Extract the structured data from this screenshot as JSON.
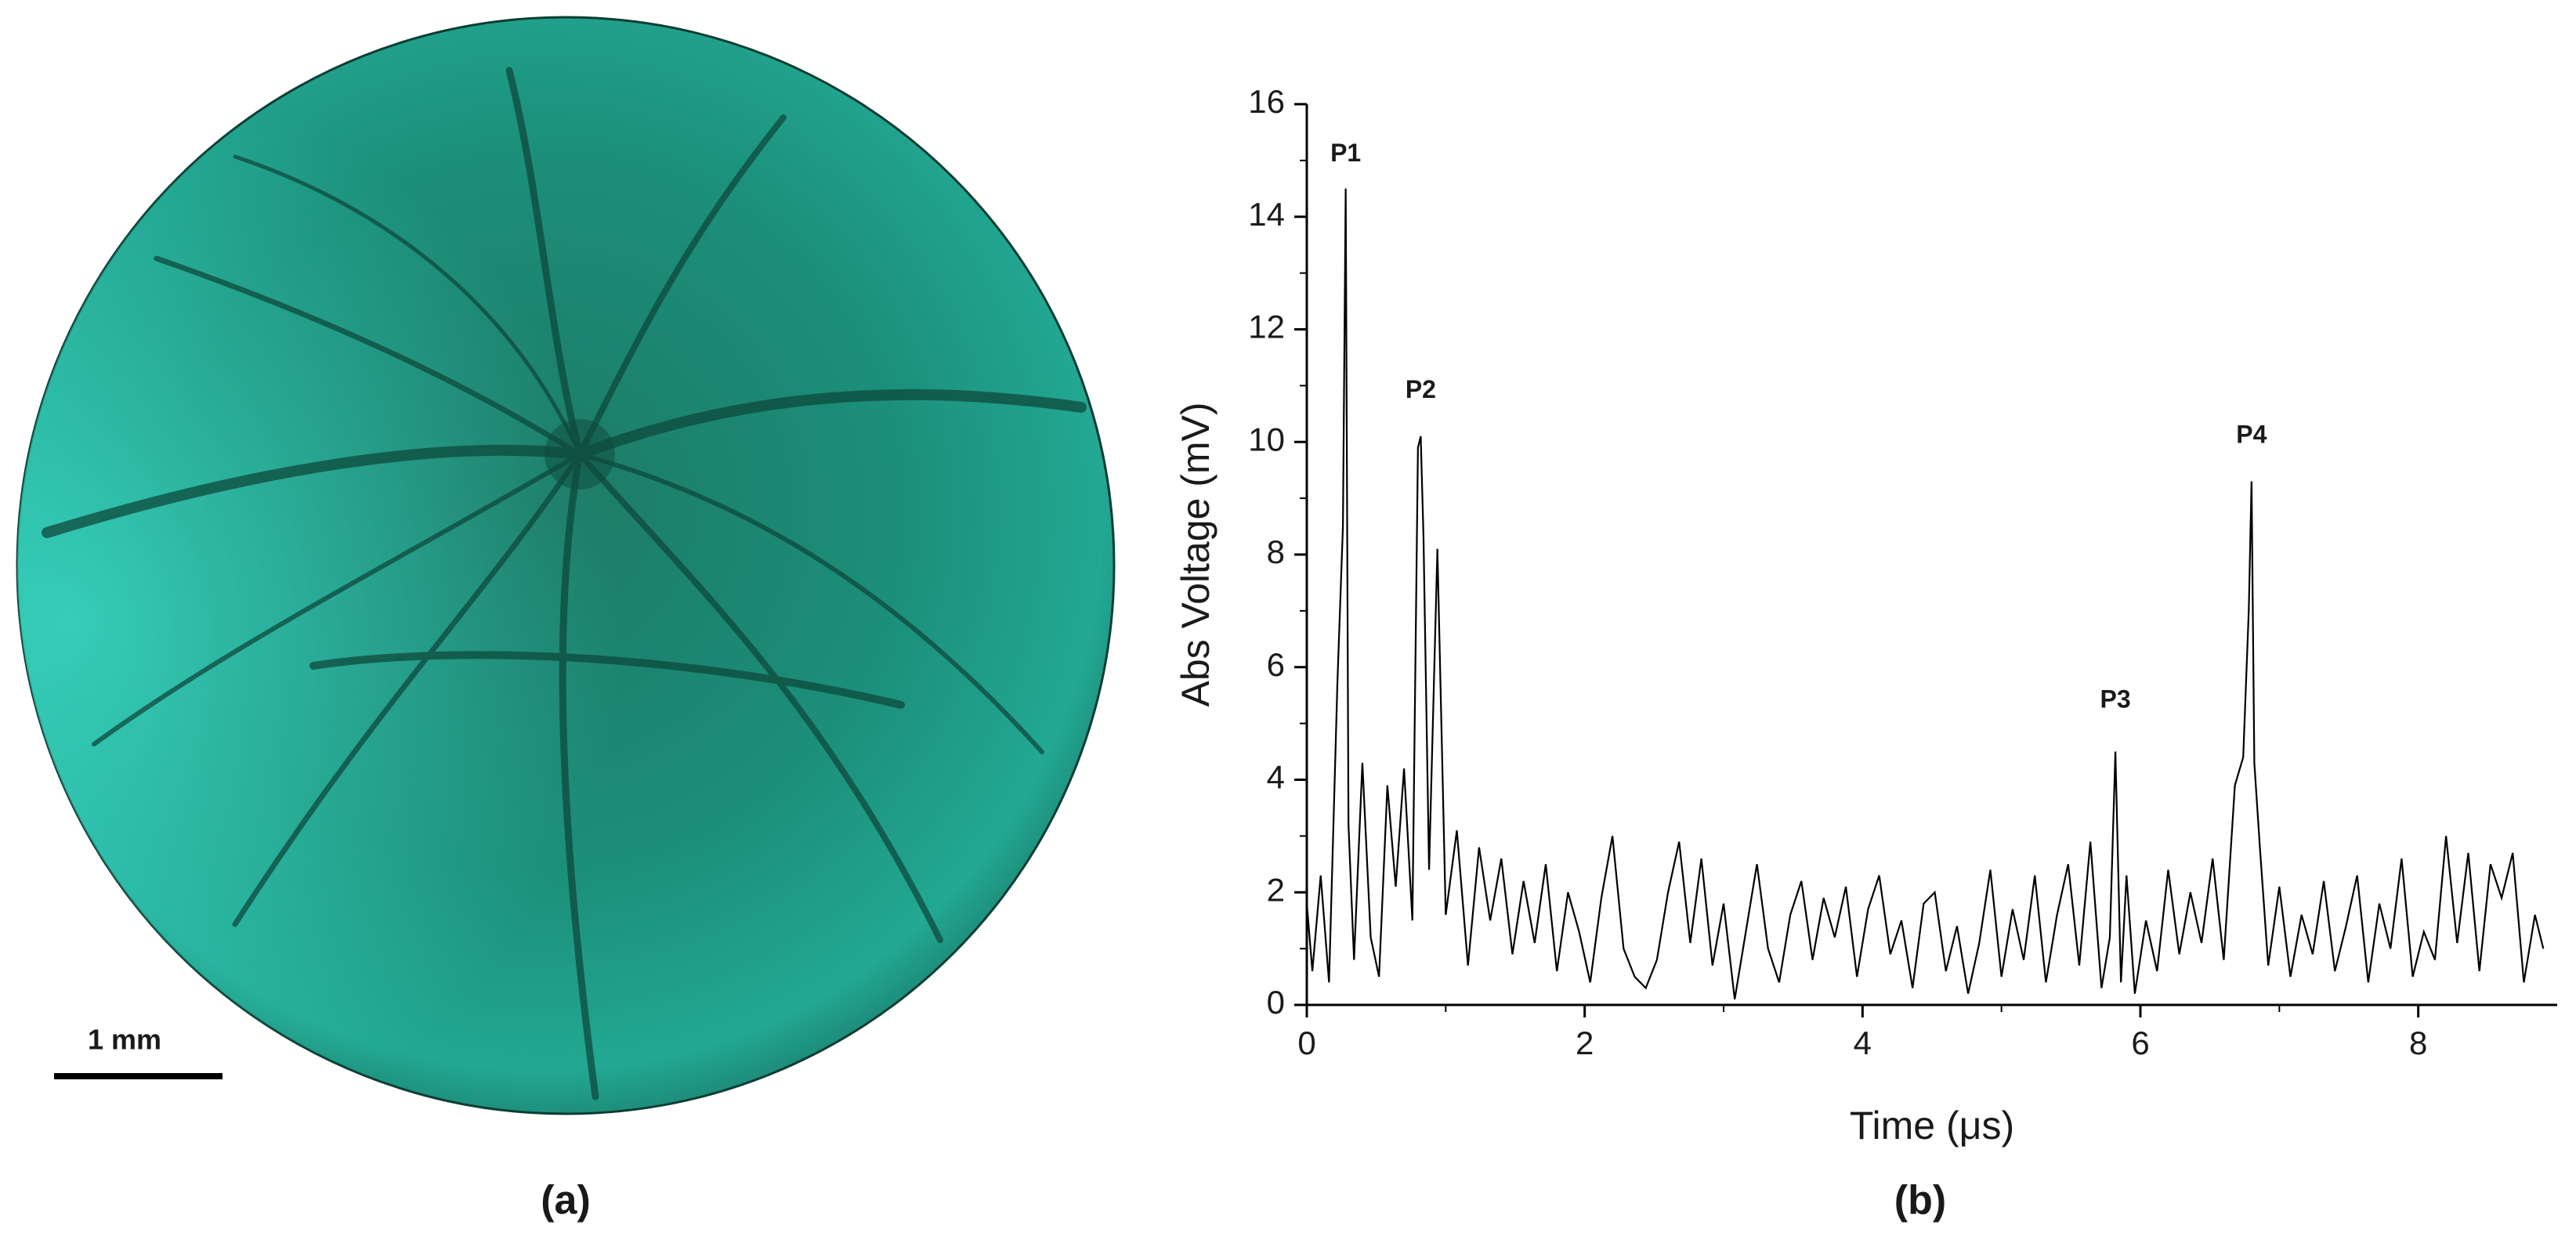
{
  "figure": {
    "panel_a_label": "(a)",
    "scale_bar": "1 mm",
    "panel_b_label": "(b)"
  },
  "chart_data": {
    "type": "line",
    "x_label": "Time (μs)",
    "y_label": "Abs Voltage (mV)",
    "x": [
      0,
      0.04,
      0.1,
      0.16,
      0.22,
      0.26,
      0.28,
      0.3,
      0.34,
      0.4,
      0.46,
      0.52,
      0.58,
      0.64,
      0.7,
      0.76,
      0.8,
      0.82,
      0.84,
      0.88,
      0.94,
      1.0,
      1.08,
      1.16,
      1.24,
      1.32,
      1.4,
      1.48,
      1.56,
      1.64,
      1.72,
      1.8,
      1.88,
      1.96,
      2.04,
      2.12,
      2.2,
      2.28,
      2.36,
      2.44,
      2.52,
      2.6,
      2.68,
      2.76,
      2.84,
      2.92,
      3.0,
      3.08,
      3.16,
      3.24,
      3.32,
      3.4,
      3.48,
      3.56,
      3.64,
      3.72,
      3.8,
      3.88,
      3.96,
      4.04,
      4.12,
      4.2,
      4.28,
      4.36,
      4.44,
      4.52,
      4.6,
      4.68,
      4.76,
      4.84,
      4.92,
      5.0,
      5.08,
      5.16,
      5.24,
      5.32,
      5.4,
      5.48,
      5.56,
      5.64,
      5.72,
      5.78,
      5.82,
      5.86,
      5.9,
      5.96,
      6.04,
      6.12,
      6.2,
      6.28,
      6.36,
      6.44,
      6.52,
      6.6,
      6.68,
      6.74,
      6.78,
      6.8,
      6.82,
      6.86,
      6.92,
      7.0,
      7.08,
      7.16,
      7.24,
      7.32,
      7.4,
      7.48,
      7.56,
      7.64,
      7.72,
      7.8,
      7.88,
      7.96,
      8.04,
      8.12,
      8.2,
      8.28,
      8.36,
      8.44,
      8.52,
      8.6,
      8.68,
      8.76,
      8.84,
      8.9
    ],
    "values": [
      1.8,
      0.6,
      2.3,
      0.4,
      5.7,
      8.5,
      14.5,
      3.2,
      0.8,
      4.3,
      1.2,
      0.5,
      3.9,
      2.1,
      4.2,
      1.5,
      9.9,
      10.1,
      8.3,
      2.4,
      8.1,
      1.6,
      3.1,
      0.7,
      2.8,
      1.5,
      2.6,
      0.9,
      2.2,
      1.1,
      2.5,
      0.6,
      2.0,
      1.3,
      0.4,
      1.9,
      3.0,
      1.0,
      0.5,
      0.3,
      0.8,
      2.0,
      2.9,
      1.1,
      2.6,
      0.7,
      1.8,
      0.1,
      1.3,
      2.5,
      1.0,
      0.4,
      1.6,
      2.2,
      0.8,
      1.9,
      1.2,
      2.1,
      0.5,
      1.7,
      2.3,
      0.9,
      1.5,
      0.3,
      1.8,
      2.0,
      0.6,
      1.4,
      0.2,
      1.1,
      2.4,
      0.5,
      1.7,
      0.8,
      2.3,
      0.4,
      1.6,
      2.5,
      0.7,
      2.9,
      0.3,
      1.2,
      4.5,
      0.4,
      2.3,
      0.2,
      1.5,
      0.6,
      2.4,
      0.9,
      2.0,
      1.1,
      2.6,
      0.8,
      3.9,
      4.4,
      7.0,
      9.3,
      4.3,
      2.8,
      0.7,
      2.1,
      0.5,
      1.6,
      0.9,
      2.2,
      0.6,
      1.4,
      2.3,
      0.4,
      1.8,
      1.0,
      2.6,
      0.5,
      1.3,
      0.8,
      3.0,
      1.1,
      2.7,
      0.6,
      2.5,
      1.9,
      2.7,
      0.4,
      1.6,
      1.0
    ],
    "color": "#000000",
    "xlim": [
      0,
      9
    ],
    "xticks": [
      0,
      2,
      4,
      6,
      8
    ],
    "xminorticks": [
      1,
      3,
      5,
      7
    ],
    "ylim": [
      0,
      16
    ],
    "yticks": [
      0,
      2,
      4,
      6,
      8,
      10,
      12,
      14,
      16
    ],
    "yminorticks": [
      1,
      3,
      5,
      7,
      9,
      11,
      13,
      15
    ],
    "annotations": [
      {
        "text": "P1",
        "x": 0.28,
        "y": 15.1
      },
      {
        "text": "P2",
        "x": 0.82,
        "y": 10.9
      },
      {
        "text": "P3",
        "x": 5.82,
        "y": 5.4
      },
      {
        "text": "P4",
        "x": 6.8,
        "y": 10.1
      }
    ]
  }
}
